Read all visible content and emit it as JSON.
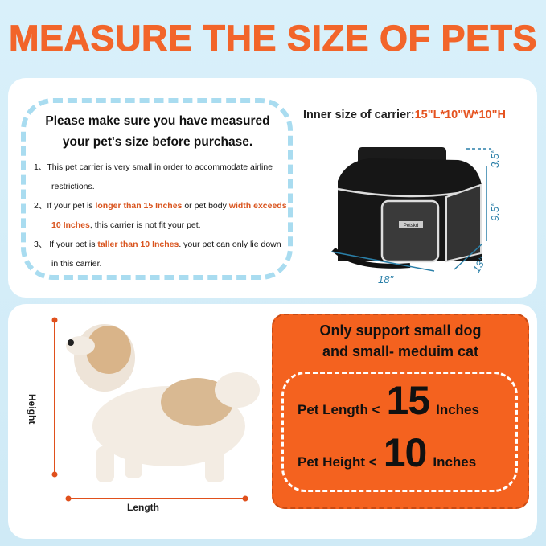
{
  "title": "MEASURE THE SIZE OF PETS",
  "notice": {
    "heading_line1": "Please make sure you have measured",
    "heading_line2": "your pet's size before purchase.",
    "items": [
      {
        "num": "1、",
        "t1": "This pet carrier is very small in order  to accommodate airline restrictions."
      },
      {
        "num": "2、",
        "t1": "If your pet is ",
        "h1": "longer than 15 Inches",
        "t2": " or pet body ",
        "h2": "width exceeds 10 Inches",
        "t3": ", this carrier is not fit your pet."
      },
      {
        "num": "3、",
        "t1": " If your pet is ",
        "h1": "taller than 10 Inches",
        "t2": ". your pet can only lie down in this carrier."
      }
    ]
  },
  "carrier": {
    "inner_label": "Inner size of carrier:",
    "inner_value": "15\"L*10\"W*10\"H",
    "dims": {
      "length": "18\"",
      "width": "13\"",
      "height": "9.5\"",
      "expand": "3.5\""
    },
    "logo": "Petskd"
  },
  "pet": {
    "height_label": "Height",
    "length_label": "Length"
  },
  "limits": {
    "heading_line1": "Only support small dog",
    "heading_line2": "and small- meduim cat",
    "length": {
      "label": "Pet Length <",
      "value": "15",
      "unit": "Inches"
    },
    "height": {
      "label": "Pet Height <",
      "value": "10",
      "unit": "Inches"
    }
  },
  "colors": {
    "accent": "#f2652a",
    "panel_orange": "#f4621f",
    "dash_blue": "#a9dcf0",
    "dimension_blue": "#2a7fa8"
  }
}
